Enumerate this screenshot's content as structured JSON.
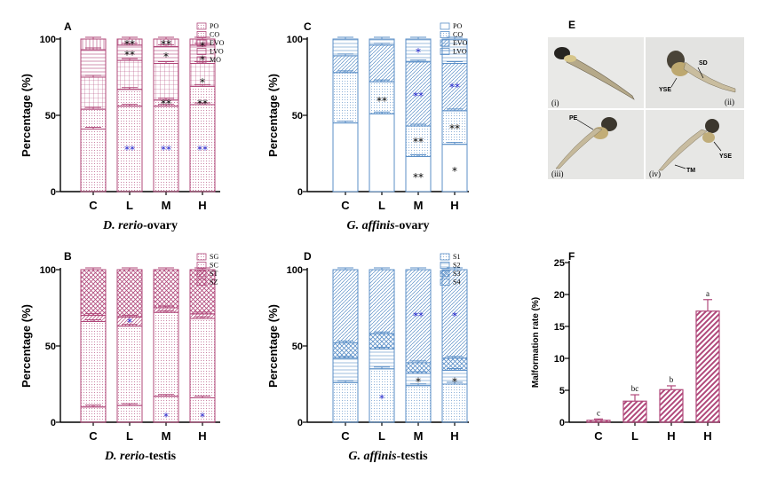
{
  "colors": {
    "pink": "#b0487a",
    "blue": "#5b8fc7",
    "star_black": "#000000",
    "star_blue": "#2222cc"
  },
  "chart_data": [
    {
      "panel": "A",
      "type": "bar",
      "stacked": true,
      "color_key": "pink",
      "categories": [
        "C",
        "L",
        "M",
        "H"
      ],
      "xlabel": "D. rerio",
      "xlabel_suffix": "-ovary",
      "ylabel": "Percentage (%)",
      "ylim": [
        0,
        100
      ],
      "yticks": [
        "0",
        "50",
        "100"
      ],
      "legend": [
        "PO",
        "CO",
        "EVO",
        "LVO",
        "MO"
      ],
      "boundaries": [
        [
          41,
          54,
          75,
          93,
          100
        ],
        [
          56,
          67,
          86,
          96,
          100
        ],
        [
          56,
          60,
          84,
          95,
          100
        ],
        [
          57,
          69,
          84,
          96,
          100
        ]
      ],
      "annotations": [
        {
          "cat": 1,
          "y": 28,
          "text": "**",
          "color": "blue"
        },
        {
          "cat": 2,
          "y": 28,
          "text": "**",
          "color": "blue"
        },
        {
          "cat": 3,
          "y": 28,
          "text": "**",
          "color": "blue"
        },
        {
          "cat": 1,
          "y": 90,
          "text": "**",
          "color": "black"
        },
        {
          "cat": 1,
          "y": 97,
          "text": "**",
          "color": "black"
        },
        {
          "cat": 2,
          "y": 58,
          "text": "**",
          "color": "black"
        },
        {
          "cat": 2,
          "y": 89,
          "text": "*",
          "color": "black"
        },
        {
          "cat": 2,
          "y": 97,
          "text": "**",
          "color": "black"
        },
        {
          "cat": 3,
          "y": 58,
          "text": "**",
          "color": "black"
        },
        {
          "cat": 3,
          "y": 72,
          "text": "*",
          "color": "black"
        },
        {
          "cat": 3,
          "y": 87,
          "text": "*",
          "color": "black"
        },
        {
          "cat": 3,
          "y": 96,
          "text": "*",
          "color": "black"
        }
      ]
    },
    {
      "panel": "C",
      "type": "bar",
      "stacked": true,
      "color_key": "blue",
      "categories": [
        "C",
        "L",
        "M",
        "H"
      ],
      "xlabel": "G. affinis",
      "xlabel_suffix": "-ovary",
      "ylabel": "Percentage (%)",
      "ylim": [
        0,
        100
      ],
      "yticks": [
        "0",
        "50",
        "100"
      ],
      "legend": [
        "PO",
        "CO",
        "EVO",
        "LVO"
      ],
      "boundaries": [
        [
          45,
          78,
          89,
          100
        ],
        [
          51,
          72,
          96,
          100
        ],
        [
          23,
          43,
          85,
          100
        ],
        [
          31,
          53,
          84,
          100
        ]
      ],
      "annotations": [
        {
          "cat": 1,
          "y": 60,
          "text": "**",
          "color": "black"
        },
        {
          "cat": 2,
          "y": 10,
          "text": "**",
          "color": "black"
        },
        {
          "cat": 2,
          "y": 33,
          "text": "**",
          "color": "black"
        },
        {
          "cat": 2,
          "y": 63,
          "text": "**",
          "color": "blue"
        },
        {
          "cat": 2,
          "y": 92,
          "text": "*",
          "color": "blue"
        },
        {
          "cat": 3,
          "y": 14,
          "text": "*",
          "color": "black"
        },
        {
          "cat": 3,
          "y": 42,
          "text": "**",
          "color": "black"
        },
        {
          "cat": 3,
          "y": 69,
          "text": "**",
          "color": "blue"
        }
      ]
    },
    {
      "panel": "B",
      "type": "bar",
      "stacked": true,
      "color_key": "pink",
      "categories": [
        "C",
        "L",
        "M",
        "H"
      ],
      "xlabel": "D. rerio",
      "xlabel_suffix": "-testis",
      "ylabel": "Percentage (%)",
      "ylim": [
        0,
        100
      ],
      "yticks": [
        "0",
        "50",
        "100"
      ],
      "legend": [
        "SG",
        "SC",
        "ST",
        "SZ"
      ],
      "boundaries": [
        [
          10,
          66,
          70,
          100
        ],
        [
          11,
          63,
          69,
          100
        ],
        [
          17,
          72,
          75,
          100
        ],
        [
          16,
          68,
          71,
          100
        ]
      ],
      "annotations": [
        {
          "cat": 1,
          "y": 66,
          "text": "*",
          "color": "blue"
        },
        {
          "cat": 2,
          "y": 4,
          "text": "*",
          "color": "blue"
        },
        {
          "cat": 3,
          "y": 4,
          "text": "*",
          "color": "blue"
        }
      ]
    },
    {
      "panel": "D",
      "type": "bar",
      "stacked": true,
      "color_key": "blue",
      "categories": [
        "C",
        "L",
        "M",
        "H"
      ],
      "xlabel": "G. affinis",
      "xlabel_suffix": "-testis",
      "ylabel": "Percentage (%)",
      "ylim": [
        0,
        100
      ],
      "yticks": [
        "0",
        "50",
        "100"
      ],
      "legend": [
        "S1",
        "S2",
        "S3",
        "S4"
      ],
      "boundaries": [
        [
          26,
          42,
          52,
          100
        ],
        [
          35,
          48,
          58,
          100
        ],
        [
          24,
          32,
          39,
          100
        ],
        [
          25,
          34,
          42,
          100
        ]
      ],
      "annotations": [
        {
          "cat": 1,
          "y": 16,
          "text": "*",
          "color": "blue"
        },
        {
          "cat": 2,
          "y": 27,
          "text": "*",
          "color": "black"
        },
        {
          "cat": 2,
          "y": 70,
          "text": "**",
          "color": "blue"
        },
        {
          "cat": 3,
          "y": 27,
          "text": "*",
          "color": "black"
        },
        {
          "cat": 3,
          "y": 70,
          "text": "*",
          "color": "blue"
        }
      ]
    },
    {
      "panel": "F",
      "type": "bar",
      "stacked": false,
      "color_key": "pink",
      "categories": [
        "C",
        "L",
        "H",
        "H"
      ],
      "values": [
        0.3,
        3.3,
        5.1,
        17.4
      ],
      "errors": [
        0.2,
        1.0,
        0.6,
        1.8
      ],
      "sig_letters": [
        "c",
        "bc",
        "b",
        "a"
      ],
      "ylabel": "Malformation rate (%)",
      "ylim": [
        0,
        25
      ],
      "yticks": [
        "0",
        "5",
        "10",
        "15",
        "20",
        "25"
      ]
    }
  ],
  "photo_panel": {
    "letter": "E",
    "images": [
      {
        "index": "(i)",
        "labels": []
      },
      {
        "index": "(ii)",
        "labels": [
          "SD",
          "YSE"
        ]
      },
      {
        "index": "(iii)",
        "labels": [
          "PE"
        ]
      },
      {
        "index": "(iv)",
        "labels": [
          "TM",
          "YSE"
        ]
      }
    ]
  }
}
